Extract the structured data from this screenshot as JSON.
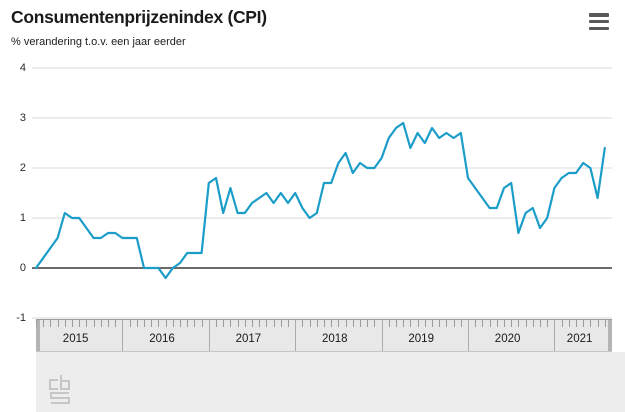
{
  "header": {
    "title": "Consumentenprijzenindex (CPI)",
    "subtitle": "% verandering t.o.v. een jaar eerder",
    "menu_icon": "hamburger-menu-icon"
  },
  "chart_data": {
    "type": "line",
    "title": "Consumentenprijzenindex (CPI)",
    "ylabel": "% verandering t.o.v. een jaar eerder",
    "x_unit": "month",
    "x_start": "2015-01",
    "x_end": "2021-08",
    "ylim": [
      -1,
      4
    ],
    "yticks": [
      4,
      3,
      2,
      1,
      0,
      -1
    ],
    "grid": true,
    "legend": "none",
    "years": [
      "2015",
      "2016",
      "2017",
      "2018",
      "2019",
      "2020",
      "2021"
    ],
    "series": [
      {
        "name": "CPI, % verandering t.o.v. een jaar eerder",
        "values_by_year": [
          {
            "year": 2015,
            "values": [
              0.0,
              0.2,
              0.4,
              0.6,
              1.1,
              1.0,
              1.0,
              0.8,
              0.6,
              0.6,
              0.7,
              0.7
            ]
          },
          {
            "year": 2016,
            "values": [
              0.6,
              0.6,
              0.6,
              0.0,
              0.0,
              0.0,
              -0.2,
              0.0,
              0.1,
              0.3,
              0.3,
              0.3
            ]
          },
          {
            "year": 2017,
            "values": [
              1.7,
              1.8,
              1.1,
              1.6,
              1.1,
              1.1,
              1.3,
              1.4,
              1.5,
              1.3,
              1.5,
              1.3
            ]
          },
          {
            "year": 2018,
            "values": [
              1.5,
              1.2,
              1.0,
              1.1,
              1.7,
              1.7,
              2.1,
              2.3,
              1.9,
              2.1,
              2.0,
              2.0
            ]
          },
          {
            "year": 2019,
            "values": [
              2.2,
              2.6,
              2.8,
              2.9,
              2.4,
              2.7,
              2.5,
              2.8,
              2.6,
              2.7,
              2.6,
              2.7
            ]
          },
          {
            "year": 2020,
            "values": [
              1.8,
              1.6,
              1.4,
              1.2,
              1.2,
              1.6,
              1.7,
              0.7,
              1.1,
              1.2,
              0.8,
              1.0
            ]
          },
          {
            "year": 2021,
            "values": [
              1.6,
              1.8,
              1.9,
              1.9,
              2.1,
              2.0,
              1.4,
              2.4
            ]
          }
        ]
      }
    ]
  },
  "timeline": {
    "kind": "time-range-slider",
    "year_labels": [
      "2015",
      "2016",
      "2017",
      "2018",
      "2019",
      "2020",
      "2021"
    ]
  },
  "footer": {
    "logo": "cbs-logo"
  },
  "colors": {
    "line": "#1b9dc9",
    "grid": "#d9d9d9",
    "zero_axis": "#6b6b6b",
    "text": "#1a1a1a",
    "band_bg": "#e8e8e8",
    "footer_bg": "#ededed",
    "menu_icon": "#58585a",
    "logo": "#c6c6c6"
  }
}
